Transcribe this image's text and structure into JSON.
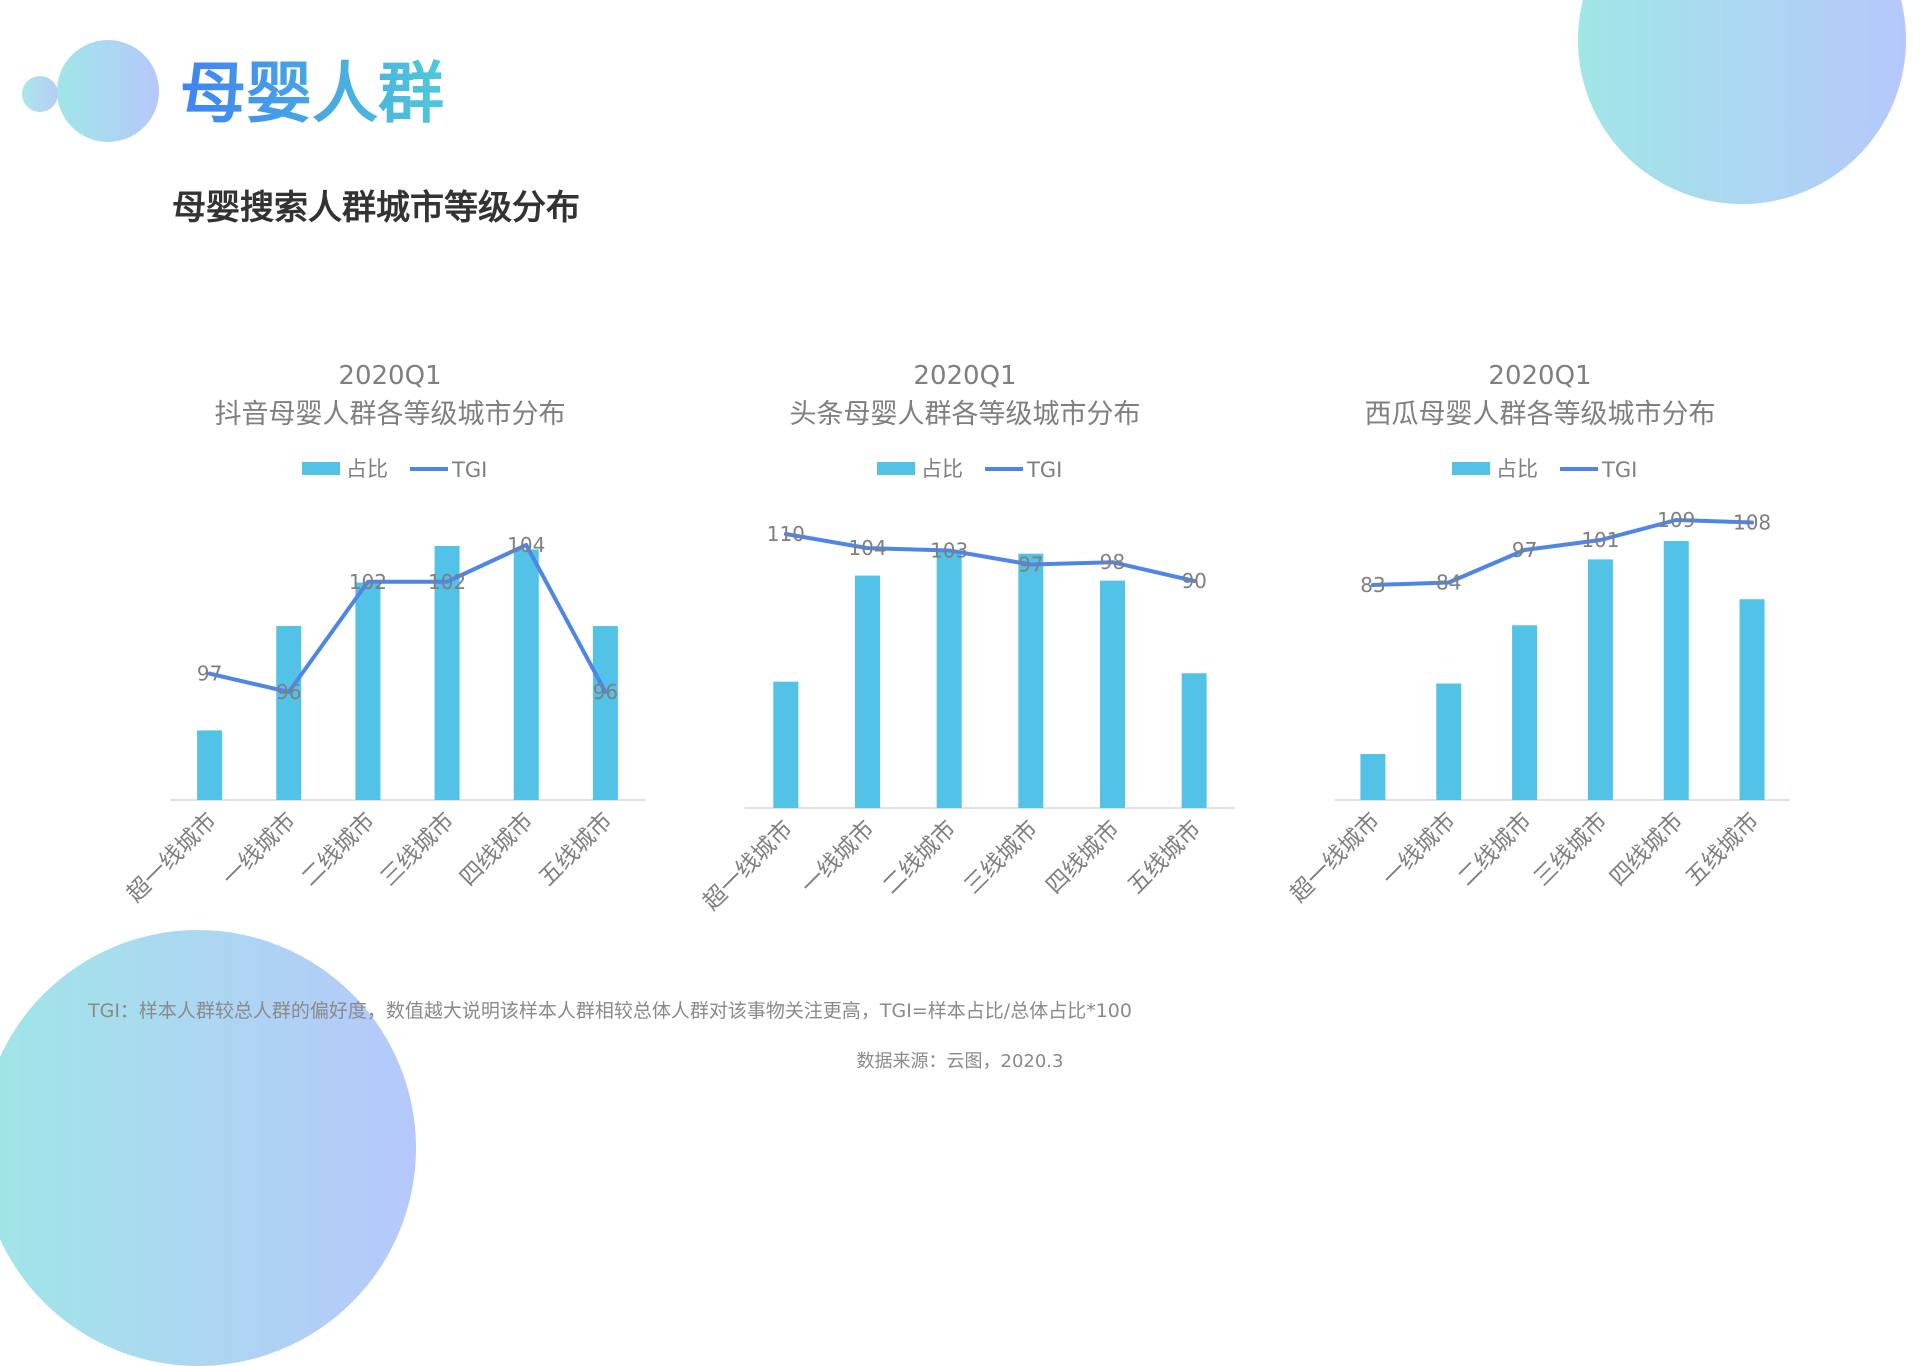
{
  "header": {
    "title": "母婴人群",
    "section_title": "母婴搜索人群城市等级分布"
  },
  "colors": {
    "bar": "#52c3e6",
    "line": "#4f86e6",
    "axis": "#d9d9d9",
    "text": "#7f7f7f"
  },
  "chart_data": [
    {
      "type": "bar",
      "title": "2020Q1",
      "subtitle": "抖音母婴人群各等级城市分布",
      "categories": [
        "超一线城市",
        "一线城市",
        "二线城市",
        "三线城市",
        "四线城市",
        "五线城市"
      ],
      "legend": [
        "占比",
        "TGI"
      ],
      "legend_position": "top",
      "series": [
        {
          "name": "占比",
          "type": "bar",
          "values": [
            4,
            10,
            12.5,
            14.6,
            14.4,
            10
          ]
        },
        {
          "name": "TGI",
          "type": "line",
          "values": [
            97,
            96,
            102,
            102,
            104,
            96
          ]
        }
      ]
    },
    {
      "type": "bar",
      "title": "2020Q1",
      "subtitle": "头条母婴人群各等级城市分布",
      "categories": [
        "超一线城市",
        "一线城市",
        "二线城市",
        "三线城市",
        "四线城市",
        "五线城市"
      ],
      "legend": [
        "占比",
        "TGI"
      ],
      "legend_position": "top",
      "series": [
        {
          "name": "占比",
          "type": "bar",
          "values": [
            7.5,
            13.8,
            15.2,
            15.1,
            13.5,
            8
          ]
        },
        {
          "name": "TGI",
          "type": "line",
          "values": [
            110,
            104,
            103,
            97,
            98,
            90
          ]
        }
      ]
    },
    {
      "type": "bar",
      "title": "2020Q1",
      "subtitle": "西瓜母婴人群各等级城市分布",
      "categories": [
        "超一线城市",
        "一线城市",
        "二线城市",
        "三线城市",
        "四线城市",
        "五线城市"
      ],
      "legend": [
        "占比",
        "TGI"
      ],
      "legend_position": "top",
      "series": [
        {
          "name": "占比",
          "type": "bar",
          "values": [
            3,
            7.6,
            11.4,
            15.7,
            16.9,
            13.1
          ]
        },
        {
          "name": "TGI",
          "type": "line",
          "values": [
            83,
            84,
            97,
            101,
            109,
            108
          ]
        }
      ]
    }
  ],
  "footer": {
    "note": "TGI：样本人群较总人群的偏好度，数值越大说明该样本人群相较总体人群对该事物关注更高，TGI=样本占比/总体占比*100",
    "source": "数据来源：云图，2020.3"
  }
}
